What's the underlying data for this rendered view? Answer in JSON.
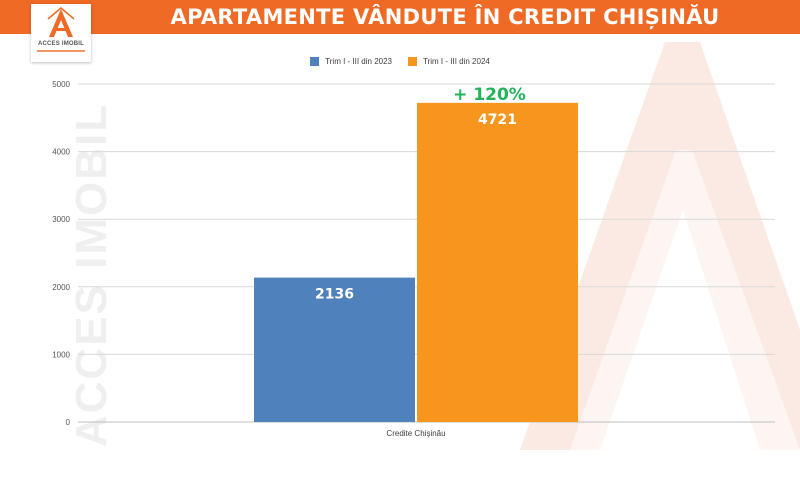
{
  "header": {
    "title": "APARTAMENTE VÂNDUTE ÎN CREDIT CHIȘINĂU",
    "background_color": "#ef6a24"
  },
  "logo": {
    "name": "ACCES IMOBIL",
    "icon": "house-a-logo-icon"
  },
  "watermark": {
    "text": "ACCES IMOBIL",
    "icon": "large-letter-a-icon"
  },
  "chart_data": {
    "type": "bar",
    "categories": [
      "Credite Chișinău"
    ],
    "series": [
      {
        "name": "Trim I - III din 2023",
        "values": [
          2136
        ],
        "color": "#4f81bd"
      },
      {
        "name": "Trim I - III din 2024",
        "values": [
          4721
        ],
        "color": "#f7961c"
      }
    ],
    "data_labels": [
      "2136",
      "4721"
    ],
    "annotation": "+ 120%",
    "annotation_color": "#22b35a",
    "y_ticks": [
      0,
      1000,
      2000,
      3000,
      4000,
      5000
    ],
    "ylim": [
      0,
      5000
    ],
    "grid": true,
    "legend_position": "top-center",
    "title": "",
    "xlabel": "",
    "ylabel": ""
  }
}
